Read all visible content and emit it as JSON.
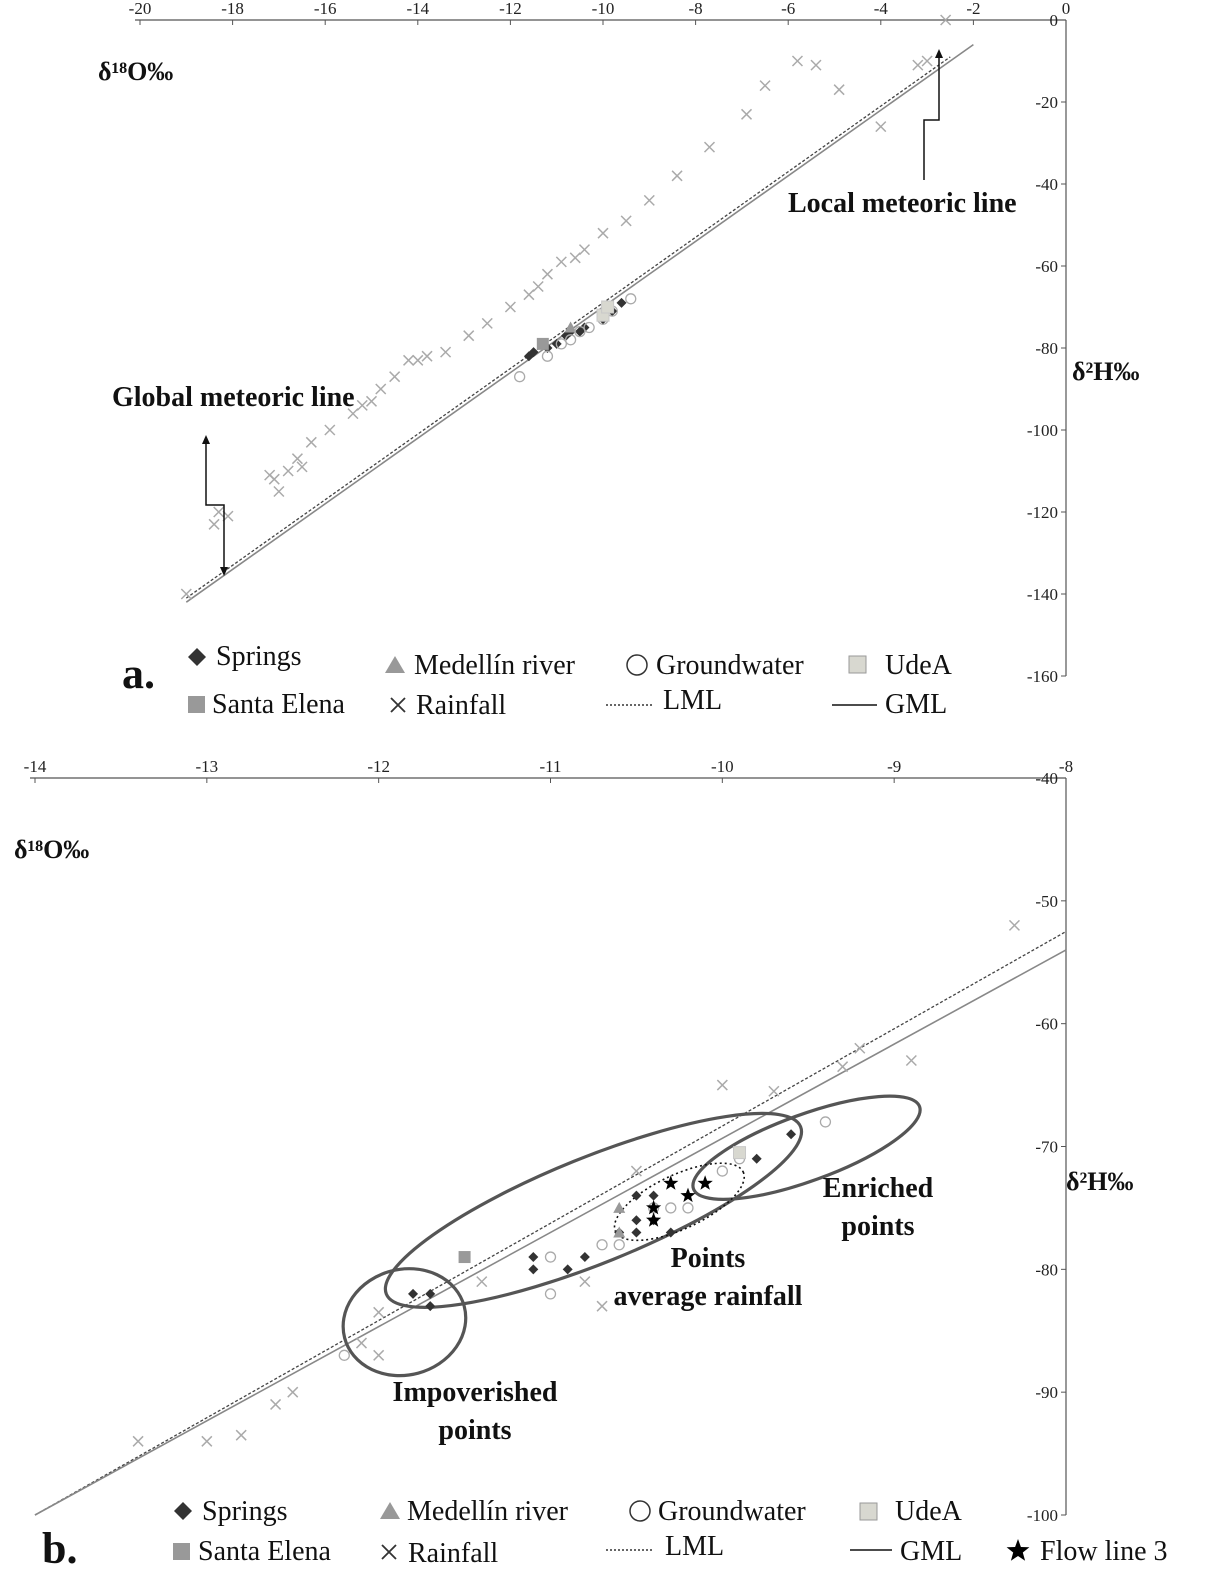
{
  "chart_data": [
    {
      "panel_label": "a.",
      "type": "scatter",
      "xlabel": "δ¹⁸O‰",
      "ylabel": "δ²H‰",
      "xlim": [
        -20,
        0
      ],
      "ylim": [
        -160,
        0
      ],
      "x_ticks": [
        "-20",
        "-18",
        "-16",
        "-14",
        "-12",
        "-10",
        "-8",
        "-6",
        "-4",
        "-2",
        "0"
      ],
      "y_ticks": [
        "0",
        "-20",
        "-40",
        "-60",
        "-80",
        "-100",
        "-120",
        "-140",
        "-160"
      ],
      "annotations": [
        "Global meteoric line",
        "Local meteoric line"
      ],
      "series": [
        {
          "name": "Springs",
          "marker": "diamond",
          "color": "#333333",
          "points": [
            [
              -11.6,
              -82
            ],
            [
              -11.5,
              -81
            ],
            [
              -11.2,
              -80
            ],
            [
              -11.0,
              -79
            ],
            [
              -10.8,
              -77
            ],
            [
              -10.7,
              -76
            ],
            [
              -10.5,
              -76
            ],
            [
              -10.4,
              -75
            ],
            [
              -10.0,
              -73
            ],
            [
              -9.8,
              -71
            ],
            [
              -9.6,
              -69
            ]
          ]
        },
        {
          "name": "Medellín river",
          "marker": "triangle",
          "color": "#999999",
          "points": [
            [
              -10.7,
              -75
            ]
          ]
        },
        {
          "name": "Groundwater",
          "marker": "circle",
          "color": "#aaaaaa",
          "points": [
            [
              -11.8,
              -87
            ],
            [
              -11.2,
              -82
            ],
            [
              -10.9,
              -79
            ],
            [
              -10.7,
              -78
            ],
            [
              -10.5,
              -76
            ],
            [
              -10.3,
              -75
            ],
            [
              -10.0,
              -73
            ],
            [
              -9.8,
              -71
            ],
            [
              -9.4,
              -68
            ]
          ]
        },
        {
          "name": "UdeA",
          "marker": "square-open",
          "color": "#c8c8c8",
          "points": [
            [
              -10.0,
              -72
            ],
            [
              -9.9,
              -70
            ]
          ]
        },
        {
          "name": "Santa Elena",
          "marker": "square",
          "color": "#999999",
          "points": [
            [
              -11.3,
              -79
            ]
          ]
        },
        {
          "name": "Rainfall",
          "marker": "x",
          "color": "#aaaaaa",
          "points": [
            [
              -19.0,
              -140
            ],
            [
              -18.4,
              -123
            ],
            [
              -18.3,
              -120
            ],
            [
              -18.1,
              -121
            ],
            [
              -17.2,
              -111
            ],
            [
              -17.1,
              -112
            ],
            [
              -17.0,
              -115
            ],
            [
              -16.8,
              -110
            ],
            [
              -16.6,
              -107
            ],
            [
              -16.5,
              -109
            ],
            [
              -16.3,
              -103
            ],
            [
              -15.9,
              -100
            ],
            [
              -15.4,
              -96
            ],
            [
              -15.2,
              -94
            ],
            [
              -15.0,
              -93
            ],
            [
              -14.8,
              -90
            ],
            [
              -14.5,
              -87
            ],
            [
              -14.2,
              -83
            ],
            [
              -14.0,
              -83
            ],
            [
              -13.8,
              -82
            ],
            [
              -13.4,
              -81
            ],
            [
              -12.9,
              -77
            ],
            [
              -12.5,
              -74
            ],
            [
              -12.0,
              -70
            ],
            [
              -11.6,
              -67
            ],
            [
              -11.4,
              -65
            ],
            [
              -11.2,
              -62
            ],
            [
              -10.9,
              -59
            ],
            [
              -10.6,
              -58
            ],
            [
              -10.4,
              -56
            ],
            [
              -10.0,
              -52
            ],
            [
              -9.5,
              -49
            ],
            [
              -9.0,
              -44
            ],
            [
              -8.4,
              -38
            ],
            [
              -7.7,
              -31
            ],
            [
              -6.9,
              -23
            ],
            [
              -6.5,
              -16
            ],
            [
              -5.8,
              -10
            ],
            [
              -5.4,
              -11
            ],
            [
              -4.9,
              -17
            ],
            [
              -4.0,
              -26
            ],
            [
              -3.2,
              -11
            ],
            [
              -3.0,
              -10
            ],
            [
              -2.6,
              0
            ]
          ]
        }
      ],
      "lines": [
        {
          "name": "LML",
          "style": "dashed",
          "x": [
            -19.0,
            -2.5
          ],
          "y": [
            -141,
            -9
          ]
        },
        {
          "name": "GML",
          "style": "solid",
          "x": [
            -19.0,
            -2.0
          ],
          "y": [
            -142,
            -6
          ]
        }
      ],
      "legend": [
        "Springs",
        "Medellín river",
        "Groundwater",
        "UdeA",
        "Santa Elena",
        "Rainfall",
        "LML",
        "GML"
      ]
    },
    {
      "panel_label": "b.",
      "type": "scatter",
      "xlabel": "δ¹⁸O‰",
      "ylabel": "δ²H‰",
      "xlim": [
        -14,
        -8
      ],
      "ylim": [
        -100,
        -40
      ],
      "x_ticks": [
        "-14",
        "-13",
        "-12",
        "-11",
        "-10",
        "-9",
        "-8"
      ],
      "y_ticks": [
        "-40",
        "-50",
        "-60",
        "-70",
        "-80",
        "-90",
        "-100"
      ],
      "annotations": [
        "Enriched points",
        "Points average rainfall",
        "Impoverished points"
      ],
      "series": [
        {
          "name": "Springs",
          "marker": "diamond",
          "color": "#333333",
          "points": [
            [
              -11.8,
              -82
            ],
            [
              -11.7,
              -82
            ],
            [
              -11.7,
              -83
            ],
            [
              -11.1,
              -79
            ],
            [
              -11.1,
              -80
            ],
            [
              -10.9,
              -80
            ],
            [
              -10.8,
              -79
            ],
            [
              -10.6,
              -77
            ],
            [
              -10.5,
              -74
            ],
            [
              -10.5,
              -76
            ],
            [
              -10.5,
              -77
            ],
            [
              -10.4,
              -74
            ],
            [
              -10.4,
              -76
            ],
            [
              -10.3,
              -77
            ],
            [
              -9.8,
              -71
            ],
            [
              -9.6,
              -69
            ]
          ]
        },
        {
          "name": "Medellín river",
          "marker": "triangle",
          "color": "#999999",
          "points": [
            [
              -10.6,
              -75
            ],
            [
              -10.6,
              -77
            ]
          ]
        },
        {
          "name": "Groundwater",
          "marker": "circle",
          "color": "#aaaaaa",
          "points": [
            [
              -12.2,
              -87
            ],
            [
              -11.0,
              -82
            ],
            [
              -11.0,
              -79
            ],
            [
              -10.7,
              -78
            ],
            [
              -10.6,
              -78
            ],
            [
              -10.4,
              -75
            ],
            [
              -10.3,
              -75
            ],
            [
              -10.2,
              -75
            ],
            [
              -10.0,
              -72
            ],
            [
              -9.9,
              -71
            ],
            [
              -9.4,
              -68
            ]
          ]
        },
        {
          "name": "UdeA",
          "marker": "square-open",
          "color": "#c8c8c8",
          "points": [
            [
              -9.9,
              -70.5
            ]
          ]
        },
        {
          "name": "Santa Elena",
          "marker": "square",
          "color": "#999999",
          "points": [
            [
              -11.5,
              -79
            ]
          ]
        },
        {
          "name": "Flow line 3",
          "marker": "star",
          "color": "#000000",
          "points": [
            [
              -10.4,
              -75
            ],
            [
              -10.4,
              -76
            ],
            [
              -10.3,
              -73
            ],
            [
              -10.2,
              -74
            ],
            [
              -10.1,
              -73
            ]
          ]
        },
        {
          "name": "Rainfall",
          "marker": "x",
          "color": "#aaaaaa",
          "points": [
            [
              -13.4,
              -94
            ],
            [
              -13.0,
              -94
            ],
            [
              -12.8,
              -93.5
            ],
            [
              -12.6,
              -91
            ],
            [
              -12.5,
              -90
            ],
            [
              -12.1,
              -86
            ],
            [
              -12.0,
              -83.5
            ],
            [
              -12.0,
              -87
            ],
            [
              -11.4,
              -81
            ],
            [
              -10.8,
              -81
            ],
            [
              -10.7,
              -83
            ],
            [
              -10.5,
              -72
            ],
            [
              -10.0,
              -65
            ],
            [
              -9.7,
              -65.5
            ],
            [
              -9.3,
              -63.5
            ],
            [
              -9.2,
              -62
            ],
            [
              -8.9,
              -63
            ],
            [
              -8.3,
              -52
            ]
          ]
        }
      ],
      "lines": [
        {
          "name": "LML",
          "style": "dashed",
          "x": [
            -14.0,
            -8.0
          ],
          "y": [
            -100.0,
            -52.5
          ]
        },
        {
          "name": "GML",
          "style": "solid",
          "x": [
            -14.0,
            -8.0
          ],
          "y": [
            -100.0,
            -54.0
          ]
        }
      ],
      "ellipses": [
        {
          "label": "Impoverished points",
          "center": [
            -11.85,
            -84.3
          ],
          "radii": [
            0.36,
            4.3
          ],
          "angle_deg": -15,
          "style": "solid"
        },
        {
          "label": "Points average rainfall",
          "center": [
            -10.75,
            -75.2
          ],
          "radii": [
            1.3,
            4.3
          ],
          "angle_deg": -22,
          "style": "solid"
        },
        {
          "label": "Enriched points",
          "center": [
            -9.51,
            -70.1
          ],
          "radii": [
            0.7,
            2.7
          ],
          "angle_deg": -20,
          "style": "solid"
        },
        {
          "label": "",
          "center": [
            -10.25,
            -74.5
          ],
          "radii": [
            0.41,
            2.2
          ],
          "angle_deg": -25,
          "style": "dotted"
        }
      ],
      "legend": [
        "Springs",
        "Medellín river",
        "Groundwater",
        "UdeA",
        "Santa Elena",
        "Rainfall",
        "LML",
        "GML",
        "Flow line 3"
      ]
    }
  ]
}
